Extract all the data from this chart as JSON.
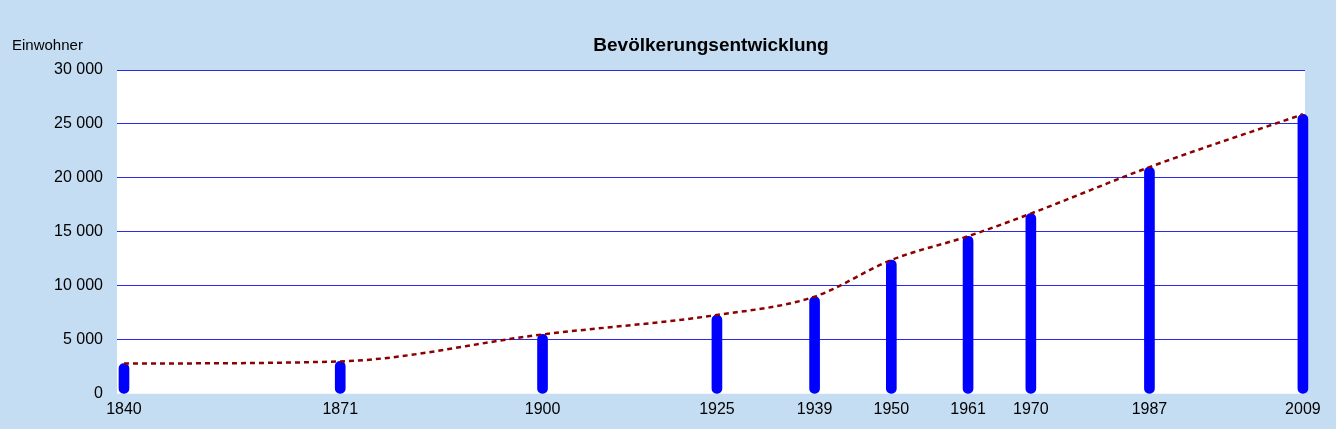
{
  "chart_data": {
    "type": "bar",
    "title": "Bevölkerungsentwicklung",
    "ylabel": "Einwohner",
    "x": [
      1840,
      1871,
      1900,
      1925,
      1939,
      1950,
      1961,
      1970,
      1987,
      2009
    ],
    "series": [
      {
        "color": "#0000ff",
        "values": [
          2800,
          3000,
          5500,
          7300,
          9000,
          12400,
          14600,
          16700,
          21000,
          25900
        ]
      },
      {
        "type": "line",
        "color": "#8b0000",
        "line_style": "dashed",
        "values": [
          2800,
          3000,
          5500,
          7300,
          9000,
          12400,
          14600,
          16700,
          21000,
          25900
        ]
      }
    ],
    "xlim": [
      1839,
      2009.3
    ],
    "xticks": [
      1840,
      1871,
      1900,
      1925,
      1939,
      1950,
      1961,
      1970,
      1987,
      2009
    ],
    "ylim": [
      0,
      30000
    ],
    "yticks": [
      {
        "value": 0,
        "label": "0"
      },
      {
        "value": 5000,
        "label": "5 000"
      },
      {
        "value": 10000,
        "label": "10 000"
      },
      {
        "value": 15000,
        "label": "15 000"
      },
      {
        "value": 20000,
        "label": "20 000"
      },
      {
        "value": 25000,
        "label": "25 000"
      },
      {
        "value": 30000,
        "label": "30 000"
      }
    ],
    "grid": "y"
  }
}
